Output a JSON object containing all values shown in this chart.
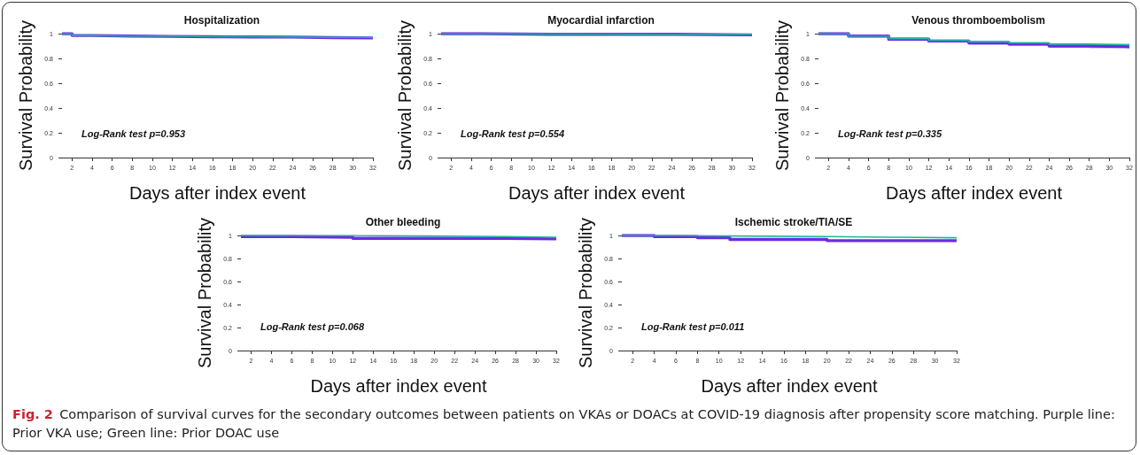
{
  "chart_data": [
    {
      "type": "step",
      "title": "Hospitalization",
      "xlabel": "Days after index event",
      "ylabel": "Survival Probability",
      "annotations": [
        "Log-Rank test p=0.953"
      ],
      "xlim": [
        1,
        32
      ],
      "ylim": [
        0,
        1
      ],
      "xticks": [
        2,
        4,
        6,
        8,
        10,
        12,
        14,
        16,
        18,
        20,
        22,
        24,
        26,
        28,
        30,
        32
      ],
      "yticks": [
        0,
        0.2,
        0.4,
        0.6,
        0.8,
        1
      ],
      "grid": false,
      "marker": "none",
      "series": [
        {
          "color": "#1fb39e",
          "x": [
            1,
            2,
            4,
            8,
            12,
            16,
            20,
            24,
            28,
            32
          ],
          "values": [
            1,
            0.985,
            0.98,
            0.98,
            0.975,
            0.975,
            0.973,
            0.97,
            0.97,
            0.968
          ]
        },
        {
          "color": "#6a2de0",
          "x": [
            1,
            2,
            4,
            8,
            12,
            16,
            20,
            24,
            28,
            32
          ],
          "values": [
            1,
            0.985,
            0.98,
            0.978,
            0.975,
            0.973,
            0.972,
            0.968,
            0.965,
            0.965
          ]
        }
      ]
    },
    {
      "type": "step",
      "title": "Myocardial infarction",
      "xlabel": "Days after index event",
      "ylabel": "Survival Probability",
      "annotations": [
        "Log-Rank test p=0.554"
      ],
      "xlim": [
        1,
        32
      ],
      "ylim": [
        0,
        1
      ],
      "xticks": [
        2,
        4,
        6,
        8,
        10,
        12,
        14,
        16,
        18,
        20,
        22,
        24,
        26,
        28,
        30,
        32
      ],
      "yticks": [
        0,
        0.2,
        0.4,
        0.6,
        0.8,
        1
      ],
      "grid": false,
      "marker": "none",
      "series": [
        {
          "color": "#1fb39e",
          "x": [
            1,
            3,
            12,
            24,
            32
          ],
          "values": [
            1,
            0.997,
            0.995,
            0.995,
            0.995
          ]
        },
        {
          "color": "#6a2de0",
          "x": [
            1,
            5,
            12,
            24,
            32
          ],
          "values": [
            1,
            0.995,
            0.995,
            0.99,
            0.99
          ]
        }
      ]
    },
    {
      "type": "step",
      "title": "Venous thromboembolism",
      "xlabel": "Days after index event",
      "ylabel": "Survival Probability",
      "annotations": [
        "Log-Rank test p=0.335"
      ],
      "xlim": [
        1,
        32
      ],
      "ylim": [
        0,
        1
      ],
      "xticks": [
        2,
        4,
        6,
        8,
        10,
        12,
        14,
        16,
        18,
        20,
        22,
        24,
        26,
        28,
        30,
        32
      ],
      "yticks": [
        0,
        0.2,
        0.4,
        0.6,
        0.8,
        1
      ],
      "grid": false,
      "marker": "none",
      "series": [
        {
          "color": "#1fb39e",
          "x": [
            1,
            4,
            8,
            12,
            16,
            20,
            24,
            28,
            32
          ],
          "values": [
            1,
            0.98,
            0.96,
            0.945,
            0.935,
            0.925,
            0.915,
            0.91,
            0.91
          ],
          "lower": [
            1,
            0.975,
            0.95,
            0.935,
            0.925,
            0.915,
            0.905,
            0.9,
            0.9
          ],
          "upper": [
            1,
            0.985,
            0.97,
            0.955,
            0.945,
            0.935,
            0.925,
            0.92,
            0.92
          ]
        },
        {
          "color": "#6a2de0",
          "x": [
            1,
            4,
            8,
            12,
            16,
            20,
            24,
            28,
            32
          ],
          "values": [
            1,
            0.98,
            0.955,
            0.94,
            0.925,
            0.915,
            0.9,
            0.895,
            0.89
          ],
          "lower": [
            1,
            0.975,
            0.945,
            0.93,
            0.91,
            0.9,
            0.885,
            0.88,
            0.875
          ],
          "upper": [
            1,
            0.985,
            0.965,
            0.95,
            0.935,
            0.925,
            0.91,
            0.905,
            0.9
          ]
        }
      ]
    },
    {
      "type": "step",
      "title": "Other bleeding",
      "xlabel": "Days after index event",
      "ylabel": "Survival Probability",
      "annotations": [
        "Log-Rank test p=0.068"
      ],
      "xlim": [
        1,
        32
      ],
      "ylim": [
        0,
        1
      ],
      "xticks": [
        2,
        4,
        6,
        8,
        10,
        12,
        14,
        16,
        18,
        20,
        22,
        24,
        26,
        28,
        30,
        32
      ],
      "yticks": [
        0,
        0.2,
        0.4,
        0.6,
        0.8,
        1
      ],
      "grid": false,
      "marker": "none",
      "series": [
        {
          "color": "#1fb39e",
          "x": [
            1,
            6,
            12,
            20,
            27,
            32
          ],
          "values": [
            1,
            1,
            0.995,
            0.99,
            0.985,
            0.985
          ]
        },
        {
          "color": "#6a2de0",
          "x": [
            1,
            6,
            12,
            20,
            27,
            32
          ],
          "values": [
            0.99,
            0.985,
            0.975,
            0.975,
            0.97,
            0.97
          ]
        }
      ]
    },
    {
      "type": "step",
      "title": "Ischemic stroke/TIA/SE",
      "xlabel": "Days after index event",
      "ylabel": "Survival Probability",
      "annotations": [
        "Log-Rank test p=0.011",
        "Fig. 2",
        "Comparison of survival curves for the secondary outcomes between patients on VKAs or DOACs at COVID-19 diagnosis after propensity score matching. Purple line: Prior VKA use; Green line: Prior DOAC use"
      ],
      "xlim": [
        1,
        32
      ],
      "ylim": [
        0,
        1
      ],
      "xticks": [
        2,
        4,
        6,
        8,
        10,
        12,
        14,
        16,
        18,
        20,
        22,
        24,
        26,
        28,
        30,
        32
      ],
      "yticks": [
        0,
        0.2,
        0.4,
        0.6,
        0.8,
        1
      ],
      "grid": false,
      "marker": "none",
      "series": [
        {
          "color": "#1fb39e",
          "x": [
            1,
            6,
            12,
            20,
            26,
            32
          ],
          "values": [
            1,
            0.995,
            0.99,
            0.985,
            0.98,
            0.98
          ]
        },
        {
          "color": "#6a2de0",
          "x": [
            1,
            4,
            8,
            11,
            20,
            32
          ],
          "values": [
            1,
            0.99,
            0.98,
            0.965,
            0.955,
            0.955
          ]
        }
      ]
    }
  ]
}
